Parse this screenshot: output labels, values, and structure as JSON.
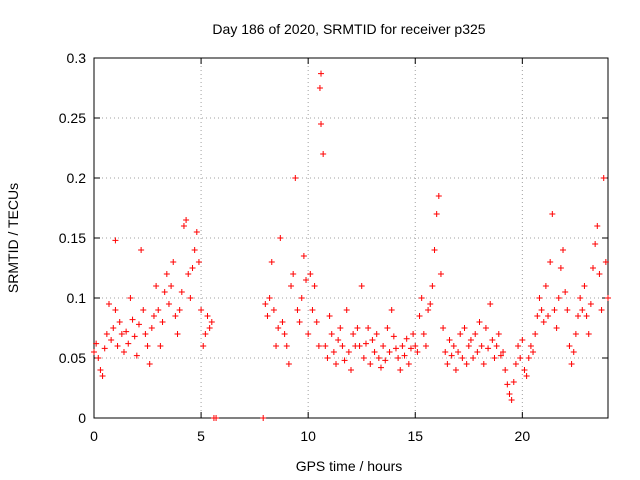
{
  "chart_data": {
    "type": "scatter",
    "title": "Day 186 of 2020, SRMTID for receiver p325",
    "xlabel": "GPS time / hours",
    "ylabel": "SRMTID / TECUs",
    "xlim": [
      0,
      24
    ],
    "ylim": [
      0,
      0.3
    ],
    "xticks": [
      0,
      5,
      10,
      15,
      20
    ],
    "xtick_labels": [
      "0",
      "5",
      "10",
      "15",
      "20"
    ],
    "yticks": [
      0,
      0.05,
      0.1,
      0.15,
      0.2,
      0.25,
      0.3
    ],
    "ytick_labels": [
      "0",
      "0.05",
      "0.1",
      "0.15",
      "0.2",
      "0.25",
      "0.3"
    ],
    "grid": true,
    "marker": "+",
    "color": "#ff0000",
    "series": [
      {
        "name": "SRMTID",
        "points": [
          [
            0.0,
            0.055
          ],
          [
            0.1,
            0.062
          ],
          [
            0.2,
            0.05
          ],
          [
            0.3,
            0.04
          ],
          [
            0.4,
            0.035
          ],
          [
            0.5,
            0.058
          ],
          [
            0.6,
            0.07
          ],
          [
            0.7,
            0.095
          ],
          [
            0.8,
            0.065
          ],
          [
            0.9,
            0.075
          ],
          [
            1.0,
            0.09
          ],
          [
            1.0,
            0.148
          ],
          [
            1.1,
            0.06
          ],
          [
            1.2,
            0.08
          ],
          [
            1.3,
            0.07
          ],
          [
            1.4,
            0.055
          ],
          [
            1.5,
            0.072
          ],
          [
            1.6,
            0.062
          ],
          [
            1.7,
            0.1
          ],
          [
            1.8,
            0.082
          ],
          [
            1.9,
            0.068
          ],
          [
            2.0,
            0.052
          ],
          [
            2.1,
            0.078
          ],
          [
            2.2,
            0.14
          ],
          [
            2.3,
            0.09
          ],
          [
            2.4,
            0.07
          ],
          [
            2.5,
            0.06
          ],
          [
            2.6,
            0.045
          ],
          [
            2.7,
            0.075
          ],
          [
            2.8,
            0.085
          ],
          [
            2.9,
            0.11
          ],
          [
            3.0,
            0.09
          ],
          [
            3.1,
            0.06
          ],
          [
            3.2,
            0.08
          ],
          [
            3.3,
            0.105
          ],
          [
            3.4,
            0.12
          ],
          [
            3.5,
            0.095
          ],
          [
            3.6,
            0.11
          ],
          [
            3.7,
            0.13
          ],
          [
            3.8,
            0.085
          ],
          [
            3.9,
            0.07
          ],
          [
            4.0,
            0.09
          ],
          [
            4.1,
            0.105
          ],
          [
            4.2,
            0.16
          ],
          [
            4.3,
            0.165
          ],
          [
            4.4,
            0.12
          ],
          [
            4.5,
            0.1
          ],
          [
            4.6,
            0.125
          ],
          [
            4.7,
            0.14
          ],
          [
            4.8,
            0.155
          ],
          [
            4.9,
            0.13
          ],
          [
            5.0,
            0.09
          ],
          [
            5.1,
            0.06
          ],
          [
            5.2,
            0.07
          ],
          [
            5.3,
            0.085
          ],
          [
            5.4,
            0.075
          ],
          [
            5.5,
            0.08
          ],
          [
            5.6,
            0.0
          ],
          [
            5.7,
            0.0
          ],
          [
            7.9,
            0.0
          ],
          [
            8.0,
            0.095
          ],
          [
            8.1,
            0.085
          ],
          [
            8.2,
            0.1
          ],
          [
            8.3,
            0.13
          ],
          [
            8.4,
            0.09
          ],
          [
            8.5,
            0.06
          ],
          [
            8.6,
            0.075
          ],
          [
            8.7,
            0.15
          ],
          [
            8.8,
            0.08
          ],
          [
            8.9,
            0.07
          ],
          [
            9.0,
            0.06
          ],
          [
            9.1,
            0.045
          ],
          [
            9.2,
            0.11
          ],
          [
            9.3,
            0.12
          ],
          [
            9.4,
            0.2
          ],
          [
            9.5,
            0.09
          ],
          [
            9.6,
            0.08
          ],
          [
            9.7,
            0.1
          ],
          [
            9.8,
            0.135
          ],
          [
            9.9,
            0.115
          ],
          [
            10.0,
            0.07
          ],
          [
            10.1,
            0.12
          ],
          [
            10.2,
            0.09
          ],
          [
            10.3,
            0.11
          ],
          [
            10.4,
            0.08
          ],
          [
            10.5,
            0.06
          ],
          [
            10.55,
            0.275
          ],
          [
            10.6,
            0.245
          ],
          [
            10.6,
            0.287
          ],
          [
            10.7,
            0.22
          ],
          [
            10.8,
            0.06
          ],
          [
            10.9,
            0.05
          ],
          [
            11.0,
            0.085
          ],
          [
            11.1,
            0.07
          ],
          [
            11.2,
            0.055
          ],
          [
            11.3,
            0.045
          ],
          [
            11.4,
            0.065
          ],
          [
            11.5,
            0.075
          ],
          [
            11.6,
            0.06
          ],
          [
            11.7,
            0.048
          ],
          [
            11.8,
            0.09
          ],
          [
            11.9,
            0.055
          ],
          [
            12.0,
            0.04
          ],
          [
            12.1,
            0.07
          ],
          [
            12.2,
            0.06
          ],
          [
            12.3,
            0.075
          ],
          [
            12.4,
            0.06
          ],
          [
            12.5,
            0.11
          ],
          [
            12.6,
            0.05
          ],
          [
            12.7,
            0.062
          ],
          [
            12.8,
            0.075
          ],
          [
            12.9,
            0.045
          ],
          [
            13.0,
            0.065
          ],
          [
            13.1,
            0.055
          ],
          [
            13.2,
            0.07
          ],
          [
            13.3,
            0.05
          ],
          [
            13.4,
            0.042
          ],
          [
            13.5,
            0.06
          ],
          [
            13.6,
            0.048
          ],
          [
            13.7,
            0.075
          ],
          [
            13.8,
            0.055
          ],
          [
            13.9,
            0.09
          ],
          [
            14.0,
            0.068
          ],
          [
            14.1,
            0.058
          ],
          [
            14.2,
            0.05
          ],
          [
            14.3,
            0.04
          ],
          [
            14.4,
            0.06
          ],
          [
            14.5,
            0.052
          ],
          [
            14.6,
            0.066
          ],
          [
            14.7,
            0.045
          ],
          [
            14.8,
            0.058
          ],
          [
            14.9,
            0.07
          ],
          [
            15.0,
            0.06
          ],
          [
            15.1,
            0.055
          ],
          [
            15.2,
            0.085
          ],
          [
            15.3,
            0.1
          ],
          [
            15.4,
            0.07
          ],
          [
            15.5,
            0.06
          ],
          [
            15.6,
            0.09
          ],
          [
            15.7,
            0.095
          ],
          [
            15.8,
            0.11
          ],
          [
            15.9,
            0.14
          ],
          [
            16.0,
            0.17
          ],
          [
            16.1,
            0.185
          ],
          [
            16.2,
            0.12
          ],
          [
            16.3,
            0.075
          ],
          [
            16.4,
            0.055
          ],
          [
            16.5,
            0.045
          ],
          [
            16.6,
            0.065
          ],
          [
            16.7,
            0.052
          ],
          [
            16.8,
            0.06
          ],
          [
            16.9,
            0.04
          ],
          [
            17.0,
            0.055
          ],
          [
            17.1,
            0.07
          ],
          [
            17.2,
            0.05
          ],
          [
            17.3,
            0.075
          ],
          [
            17.4,
            0.045
          ],
          [
            17.5,
            0.06
          ],
          [
            17.6,
            0.065
          ],
          [
            17.7,
            0.05
          ],
          [
            17.8,
            0.07
          ],
          [
            17.9,
            0.055
          ],
          [
            18.0,
            0.08
          ],
          [
            18.1,
            0.06
          ],
          [
            18.2,
            0.045
          ],
          [
            18.3,
            0.075
          ],
          [
            18.4,
            0.058
          ],
          [
            18.5,
            0.095
          ],
          [
            18.6,
            0.065
          ],
          [
            18.7,
            0.05
          ],
          [
            18.8,
            0.06
          ],
          [
            18.9,
            0.07
          ],
          [
            19.0,
            0.052
          ],
          [
            19.1,
            0.055
          ],
          [
            19.2,
            0.04
          ],
          [
            19.3,
            0.028
          ],
          [
            19.4,
            0.02
          ],
          [
            19.5,
            0.015
          ],
          [
            19.6,
            0.03
          ],
          [
            19.7,
            0.045
          ],
          [
            19.8,
            0.06
          ],
          [
            19.9,
            0.05
          ],
          [
            20.0,
            0.065
          ],
          [
            20.1,
            0.04
          ],
          [
            20.2,
            0.035
          ],
          [
            20.3,
            0.05
          ],
          [
            20.4,
            0.06
          ],
          [
            20.5,
            0.055
          ],
          [
            20.6,
            0.07
          ],
          [
            20.7,
            0.085
          ],
          [
            20.8,
            0.1
          ],
          [
            20.9,
            0.09
          ],
          [
            21.0,
            0.08
          ],
          [
            21.1,
            0.11
          ],
          [
            21.2,
            0.085
          ],
          [
            21.3,
            0.13
          ],
          [
            21.4,
            0.17
          ],
          [
            21.5,
            0.09
          ],
          [
            21.6,
            0.075
          ],
          [
            21.7,
            0.1
          ],
          [
            21.8,
            0.125
          ],
          [
            21.9,
            0.14
          ],
          [
            22.0,
            0.105
          ],
          [
            22.1,
            0.09
          ],
          [
            22.2,
            0.06
          ],
          [
            22.3,
            0.045
          ],
          [
            22.4,
            0.055
          ],
          [
            22.5,
            0.07
          ],
          [
            22.6,
            0.085
          ],
          [
            22.7,
            0.1
          ],
          [
            22.8,
            0.09
          ],
          [
            22.9,
            0.11
          ],
          [
            23.0,
            0.085
          ],
          [
            23.1,
            0.07
          ],
          [
            23.2,
            0.095
          ],
          [
            23.3,
            0.125
          ],
          [
            23.4,
            0.145
          ],
          [
            23.5,
            0.16
          ],
          [
            23.6,
            0.12
          ],
          [
            23.7,
            0.09
          ],
          [
            23.8,
            0.2
          ],
          [
            23.9,
            0.13
          ],
          [
            24.0,
            0.1
          ]
        ]
      }
    ]
  }
}
